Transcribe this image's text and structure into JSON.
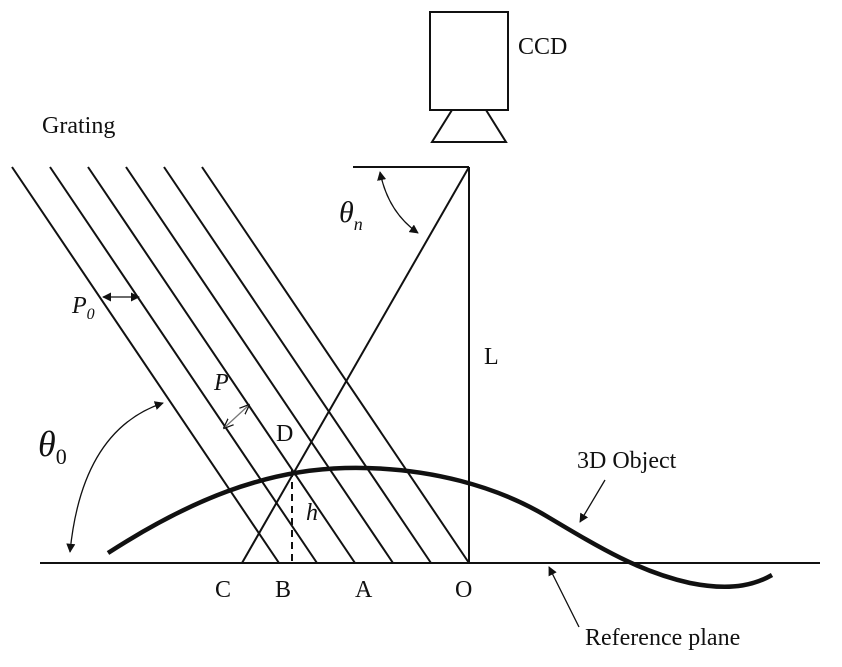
{
  "labels": {
    "ccd": "CCD",
    "grating": "Grating",
    "theta_n": "θ",
    "theta_n_sub": "n",
    "p0": "P",
    "p0_sub": "0",
    "p": "P",
    "d": "D",
    "l": "L",
    "h": "h",
    "theta_0": "θ",
    "theta_0_sub": "0",
    "object": "3D Object",
    "reference_plane": "Reference plane",
    "point_c": "C",
    "point_b": "B",
    "point_a": "A",
    "point_o": "O"
  }
}
